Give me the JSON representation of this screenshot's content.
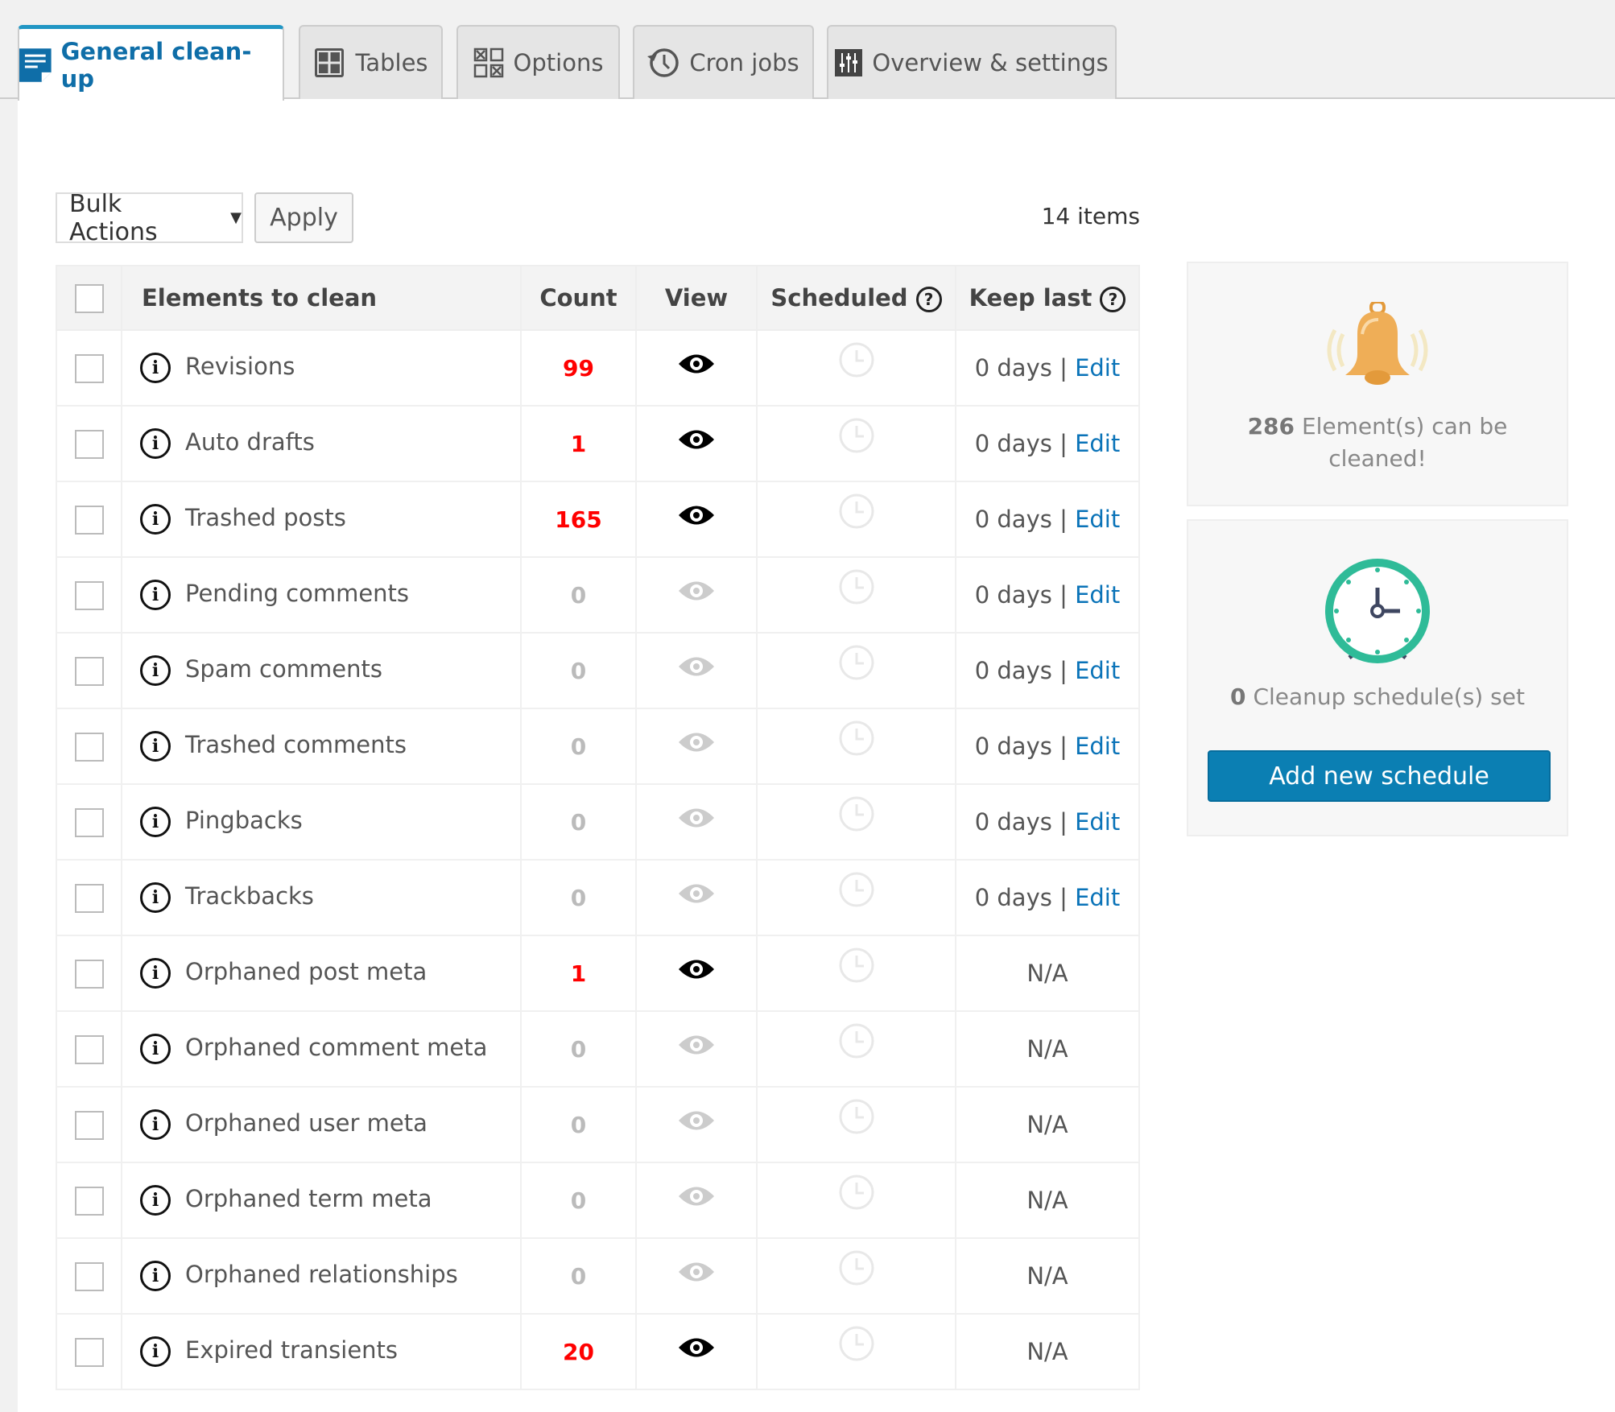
{
  "tabs": [
    {
      "label": "General clean-up",
      "icon": "document-list-icon",
      "active": true
    },
    {
      "label": "Tables",
      "icon": "grid-icon"
    },
    {
      "label": "Options",
      "icon": "checkbox-grid-icon"
    },
    {
      "label": "Cron jobs",
      "icon": "history-clock-icon"
    },
    {
      "label": "Overview & settings",
      "icon": "sliders-icon"
    }
  ],
  "toolbar": {
    "bulk_actions": "Bulk Actions",
    "apply": "Apply",
    "items_count": "14 items"
  },
  "table": {
    "headers": {
      "name": "Elements to clean",
      "count": "Count",
      "view": "View",
      "scheduled": "Scheduled",
      "keep_last": "Keep last"
    },
    "rows": [
      {
        "name": "Revisions",
        "count": "99",
        "active": true,
        "keep": "0 days",
        "edit": "Edit"
      },
      {
        "name": "Auto drafts",
        "count": "1",
        "active": true,
        "keep": "0 days",
        "edit": "Edit"
      },
      {
        "name": "Trashed posts",
        "count": "165",
        "active": true,
        "keep": "0 days",
        "edit": "Edit"
      },
      {
        "name": "Pending comments",
        "count": "0",
        "active": false,
        "keep": "0 days",
        "edit": "Edit"
      },
      {
        "name": "Spam comments",
        "count": "0",
        "active": false,
        "keep": "0 days",
        "edit": "Edit"
      },
      {
        "name": "Trashed comments",
        "count": "0",
        "active": false,
        "keep": "0 days",
        "edit": "Edit"
      },
      {
        "name": "Pingbacks",
        "count": "0",
        "active": false,
        "keep": "0 days",
        "edit": "Edit"
      },
      {
        "name": "Trackbacks",
        "count": "0",
        "active": false,
        "keep": "0 days",
        "edit": "Edit"
      },
      {
        "name": "Orphaned post meta",
        "count": "1",
        "active": true,
        "keep": "N/A"
      },
      {
        "name": "Orphaned comment meta",
        "count": "0",
        "active": false,
        "keep": "N/A"
      },
      {
        "name": "Orphaned user meta",
        "count": "0",
        "active": false,
        "keep": "N/A"
      },
      {
        "name": "Orphaned term meta",
        "count": "0",
        "active": false,
        "keep": "N/A"
      },
      {
        "name": "Orphaned relationships",
        "count": "0",
        "active": false,
        "keep": "N/A"
      },
      {
        "name": "Expired transients",
        "count": "20",
        "active": true,
        "keep": "N/A"
      }
    ]
  },
  "summary": {
    "elements_count": "286",
    "elements_text": "Element(s) can be cleaned!",
    "schedules_count": "0",
    "schedules_text": "Cleanup schedule(s) set",
    "add_schedule": "Add new schedule"
  },
  "colors": {
    "accent": "#0b7fb3",
    "count_active": "#ff0000",
    "count_zero": "#bbbbbb",
    "link": "#0a73b8",
    "bell": "#efae57",
    "clock": "#2fbb98"
  }
}
